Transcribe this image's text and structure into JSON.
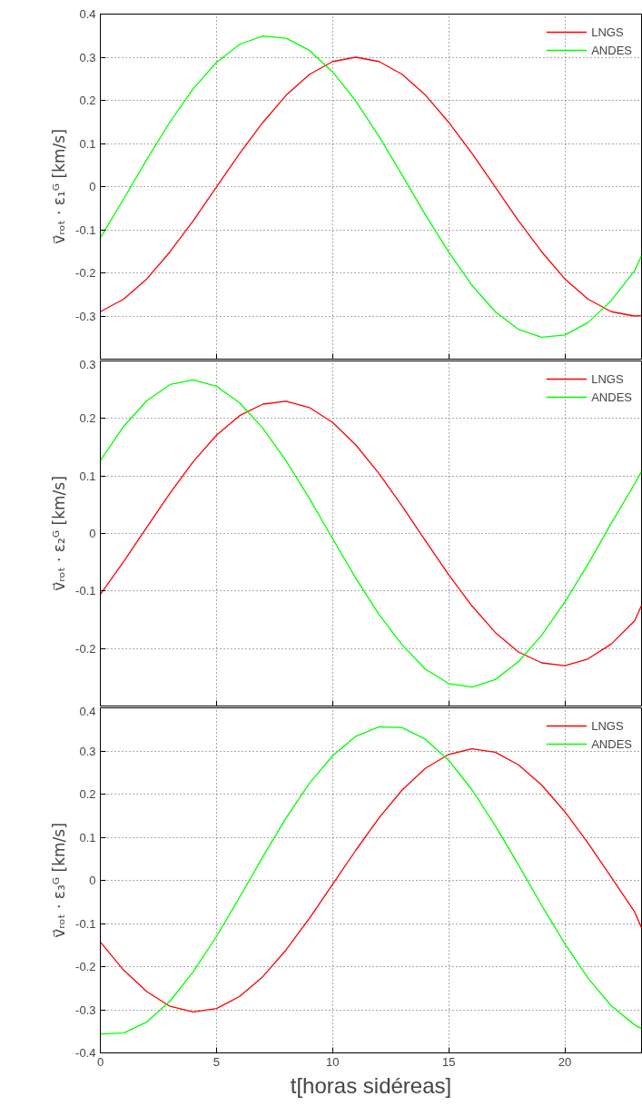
{
  "chart_data": [
    {
      "type": "line",
      "ylabel": "v⃗ᵣₒₜ · ε₁ᴳ [km/s]",
      "x": [
        0,
        1,
        2,
        3,
        4,
        5,
        6,
        7,
        8,
        9,
        10,
        11,
        12,
        13,
        14,
        15,
        16,
        17,
        18,
        19,
        20,
        21,
        22,
        23,
        23.3
      ],
      "xlim": [
        0,
        23.3
      ],
      "xticks": [
        0,
        5,
        10,
        15,
        20
      ],
      "ylim": [
        -0.4,
        0.4
      ],
      "yticks": [
        -0.3,
        -0.2,
        -0.1,
        0,
        0.1,
        0.2,
        0.3,
        0.4
      ],
      "tick_labels": "y",
      "grid": true,
      "legend": "top right",
      "marker": "none",
      "line_style": "solid",
      "series": [
        {
          "name": "LNGS",
          "color": "#ff0000",
          "values": [
            -0.29,
            -0.261,
            -0.214,
            -0.151,
            -0.079,
            -0.001,
            0.077,
            0.149,
            0.212,
            0.26,
            0.29,
            0.3,
            0.29,
            0.26,
            0.212,
            0.149,
            0.077,
            -0.001,
            -0.079,
            -0.151,
            -0.214,
            -0.261,
            -0.29,
            -0.3,
            -0.299
          ]
        },
        {
          "name": "ANDES",
          "color": "#00ff00",
          "values": [
            -0.119,
            -0.029,
            0.063,
            0.15,
            0.227,
            0.288,
            0.33,
            0.349,
            0.344,
            0.316,
            0.266,
            0.198,
            0.116,
            0.026,
            -0.066,
            -0.152,
            -0.229,
            -0.29,
            -0.331,
            -0.349,
            -0.344,
            -0.315,
            -0.264,
            -0.195,
            -0.16
          ]
        }
      ]
    },
    {
      "type": "line",
      "ylabel": "v⃗ᵣₒₜ · ε₂ᴳ [km/s]",
      "x": [
        0,
        1,
        2,
        3,
        4,
        5,
        6,
        7,
        8,
        9,
        10,
        11,
        12,
        13,
        14,
        15,
        16,
        17,
        18,
        19,
        20,
        21,
        22,
        23,
        23.3
      ],
      "xlim": [
        0,
        23.3
      ],
      "xticks": [
        0,
        5,
        10,
        15,
        20
      ],
      "ylim": [
        -0.3,
        0.3
      ],
      "yticks": [
        -0.2,
        -0.1,
        0,
        0.1,
        0.2,
        0.3
      ],
      "tick_labels": "y",
      "grid": true,
      "legend": "top right",
      "marker": "none",
      "line_style": "solid",
      "series": [
        {
          "name": "LNGS",
          "color": "#ff0000",
          "values": [
            -0.106,
            -0.049,
            0.011,
            0.07,
            0.125,
            0.171,
            0.205,
            0.225,
            0.23,
            0.219,
            0.193,
            0.154,
            0.104,
            0.047,
            -0.013,
            -0.072,
            -0.126,
            -0.172,
            -0.206,
            -0.225,
            -0.23,
            -0.218,
            -0.192,
            -0.152,
            -0.125
          ]
        },
        {
          "name": "ANDES",
          "color": "#00ff00",
          "values": [
            0.127,
            0.186,
            0.231,
            0.259,
            0.267,
            0.256,
            0.227,
            0.183,
            0.126,
            0.061,
            -0.009,
            -0.078,
            -0.141,
            -0.194,
            -0.236,
            -0.261,
            -0.267,
            -0.254,
            -0.223,
            -0.177,
            -0.119,
            -0.053,
            0.018,
            0.086,
            0.108
          ]
        }
      ]
    },
    {
      "type": "line",
      "xlabel": "t[horas sidéreas]",
      "ylabel": "v⃗ᵣₒₜ · ε₃ᴳ [km/s]",
      "x": [
        0,
        1,
        2,
        3,
        4,
        5,
        6,
        7,
        8,
        9,
        10,
        11,
        12,
        13,
        14,
        15,
        16,
        17,
        18,
        19,
        20,
        21,
        22,
        23,
        23.3
      ],
      "xlim": [
        0,
        23.3
      ],
      "xticks": [
        0,
        5,
        10,
        15,
        20
      ],
      "ylim": [
        -0.4,
        0.4
      ],
      "yticks": [
        -0.4,
        -0.3,
        -0.2,
        -0.1,
        0,
        0.1,
        0.2,
        0.3,
        0.4
      ],
      "grid": true,
      "legend": "top right",
      "marker": "none",
      "line_style": "solid",
      "series": [
        {
          "name": "LNGS",
          "color": "#ff0000",
          "values": [
            -0.143,
            -0.208,
            -0.258,
            -0.292,
            -0.305,
            -0.297,
            -0.269,
            -0.223,
            -0.161,
            -0.088,
            -0.009,
            0.07,
            0.145,
            0.21,
            0.26,
            0.292,
            0.305,
            0.297,
            0.268,
            0.221,
            0.159,
            0.086,
            0.007,
            -0.073,
            -0.11
          ]
        },
        {
          "name": "ANDES",
          "color": "#00ff00",
          "values": [
            -0.356,
            -0.354,
            -0.328,
            -0.28,
            -0.212,
            -0.13,
            -0.039,
            0.055,
            0.145,
            0.225,
            0.289,
            0.334,
            0.356,
            0.354,
            0.327,
            0.278,
            0.21,
            0.127,
            0.036,
            -0.058,
            -0.147,
            -0.227,
            -0.291,
            -0.335,
            -0.344
          ]
        }
      ]
    }
  ]
}
